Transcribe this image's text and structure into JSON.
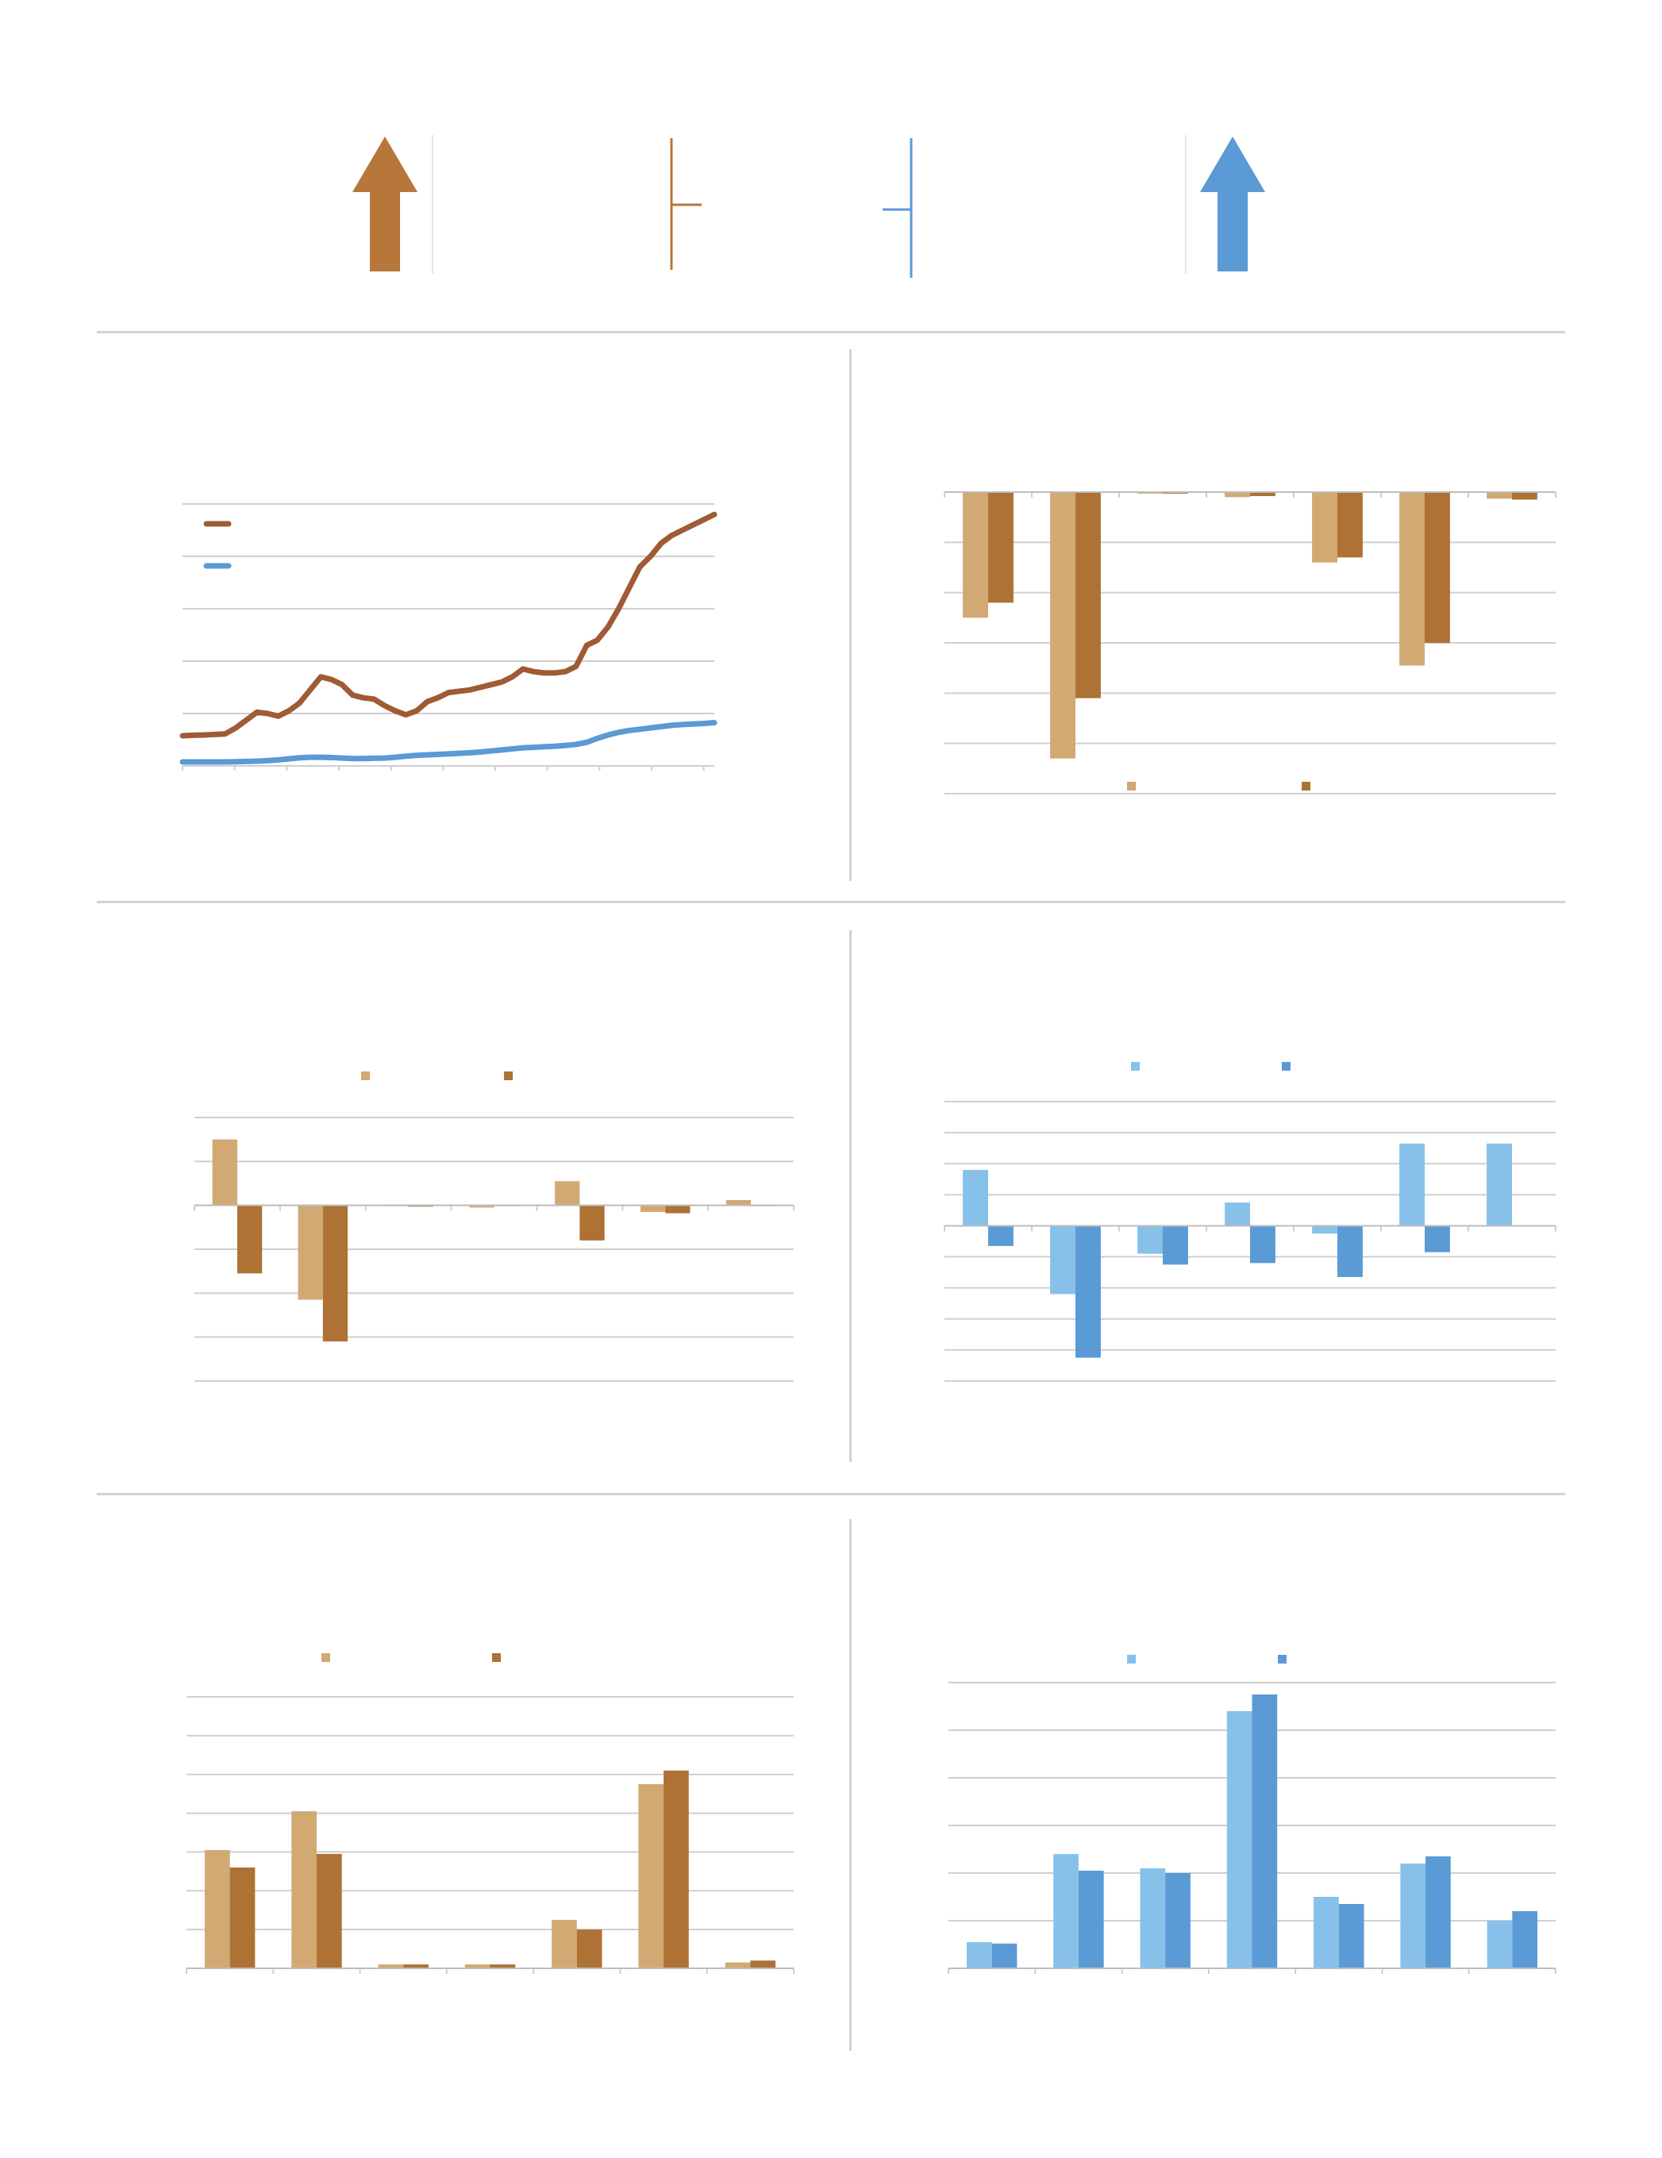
{
  "colors": {
    "brown_dark": "#9f5b35",
    "brown": "#ad7234",
    "tan": "#d2a873",
    "blue": "#5a9ad5",
    "light_blue": "#87c1ea",
    "grid": "#cfcfcf",
    "separator": "#d2d2d2"
  },
  "header_icons": [
    {
      "name": "up-arrow-icon",
      "color": "#b8773a"
    },
    {
      "name": "level-marker-icon",
      "color": "#b8773a"
    },
    {
      "name": "level-marker-icon",
      "color": "#5a9ad5"
    },
    {
      "name": "up-arrow-icon",
      "color": "#5a9ad5"
    }
  ],
  "chart_data": [
    {
      "id": "line-chart",
      "type": "line",
      "title": "",
      "xlabel": "",
      "ylabel": "",
      "grid": true,
      "legend": "top-left",
      "ylim": [
        0,
        100
      ],
      "x": [
        0,
        2,
        4,
        6,
        8,
        10,
        12,
        14,
        16,
        18,
        20,
        22,
        24,
        26,
        28,
        30,
        32,
        34,
        36,
        38,
        40,
        42,
        44,
        46,
        48,
        50,
        52,
        54,
        56,
        58,
        60,
        62,
        64,
        66,
        68,
        70,
        72,
        74,
        76,
        78,
        80,
        82,
        84,
        86,
        88,
        90,
        92,
        94,
        96,
        98,
        100
      ],
      "series": [
        {
          "name": "",
          "color": "#9f5b35",
          "values": [
            11.5,
            11.7,
            11.8,
            12,
            12.2,
            14.5,
            17.5,
            20.5,
            20,
            19,
            21,
            24,
            29,
            34,
            33,
            31,
            27,
            26,
            25.5,
            23,
            21,
            19.5,
            21,
            24.5,
            26,
            28,
            28.5,
            29,
            30,
            31,
            32,
            34,
            37,
            36,
            35.5,
            35.5,
            36,
            38,
            46,
            48,
            53,
            60,
            68,
            76,
            80,
            85,
            88,
            90,
            92,
            94,
            96
          ]
        },
        {
          "name": "",
          "color": "#5a9ad5",
          "values": [
            1.5,
            1.5,
            1.5,
            1.5,
            1.5,
            1.6,
            1.7,
            1.8,
            2,
            2.3,
            2.7,
            3.1,
            3.3,
            3.3,
            3.2,
            3,
            2.8,
            2.8,
            2.9,
            3,
            3.3,
            3.7,
            4,
            4.2,
            4.4,
            4.6,
            4.8,
            5,
            5.3,
            5.7,
            6.1,
            6.5,
            6.9,
            7.1,
            7.3,
            7.5,
            7.8,
            8.2,
            9,
            10.5,
            11.8,
            12.8,
            13.5,
            14,
            14.5,
            15,
            15.5,
            15.8,
            16,
            16.2,
            16.5
          ]
        }
      ]
    },
    {
      "id": "bar-chart-tan-brown-top",
      "type": "bar",
      "title": "",
      "grid": true,
      "legend": "bottom",
      "ylim": [
        -60,
        0
      ],
      "categories": [
        "",
        "",
        "",
        "",
        "",
        "",
        ""
      ],
      "series": [
        {
          "name": "",
          "color": "#d2a873",
          "values": [
            -25,
            -53,
            -0.3,
            -1,
            -14,
            -34.5,
            -1.3
          ]
        },
        {
          "name": "",
          "color": "#ad7234",
          "values": [
            -22,
            -41,
            -0.3,
            -0.8,
            -13,
            -30,
            -1.5
          ]
        }
      ]
    },
    {
      "id": "bar-chart-tan-brown-middle",
      "type": "bar",
      "title": "",
      "grid": true,
      "legend": "top",
      "ylim": [
        -4,
        2
      ],
      "categories": [
        "",
        "",
        "",
        "",
        "",
        "",
        ""
      ],
      "series": [
        {
          "name": "",
          "color": "#d2a873",
          "values": [
            1.5,
            -2.15,
            0,
            -0.05,
            0.55,
            -0.15,
            0.12
          ]
        },
        {
          "name": "",
          "color": "#ad7234",
          "values": [
            -1.55,
            -3.1,
            -0.03,
            0,
            -0.8,
            -0.18,
            0
          ]
        }
      ]
    },
    {
      "id": "bar-chart-blue-middle",
      "type": "bar",
      "title": "",
      "grid": true,
      "legend": "top",
      "ylim": [
        -5,
        4
      ],
      "categories": [
        "",
        "",
        "",
        "",
        "",
        "",
        ""
      ],
      "series": [
        {
          "name": "",
          "color": "#87c1ea",
          "values": [
            1.8,
            -2.2,
            -0.9,
            0.75,
            -0.25,
            2.65,
            2.65
          ]
        },
        {
          "name": "",
          "color": "#5a9ad5",
          "values": [
            -0.65,
            -4.25,
            -1.25,
            -1.2,
            -1.65,
            -0.85,
            0
          ]
        }
      ]
    },
    {
      "id": "bar-chart-tan-brown-bottom",
      "type": "bar",
      "title": "",
      "grid": true,
      "legend": "top",
      "ylim": [
        0,
        7
      ],
      "categories": [
        "",
        "",
        "",
        "",
        "",
        "",
        ""
      ],
      "series": [
        {
          "name": "",
          "color": "#d2a873",
          "values": [
            3.05,
            4.05,
            0.1,
            0.1,
            1.25,
            4.75,
            0.15
          ]
        },
        {
          "name": "",
          "color": "#ad7234",
          "values": [
            2.6,
            2.95,
            0.1,
            0.1,
            1,
            5.1,
            0.2
          ]
        }
      ]
    },
    {
      "id": "bar-chart-blue-bottom",
      "type": "bar",
      "title": "",
      "grid": true,
      "legend": "top",
      "ylim": [
        0,
        6
      ],
      "categories": [
        "",
        "",
        "",
        "",
        "",
        "",
        ""
      ],
      "series": [
        {
          "name": "",
          "color": "#87c1ea",
          "values": [
            0.55,
            2.4,
            2.1,
            5.4,
            1.5,
            2.2,
            1
          ]
        },
        {
          "name": "",
          "color": "#5a9ad5",
          "values": [
            0.52,
            2.05,
            2,
            5.75,
            1.35,
            2.35,
            1.2
          ]
        }
      ]
    }
  ]
}
